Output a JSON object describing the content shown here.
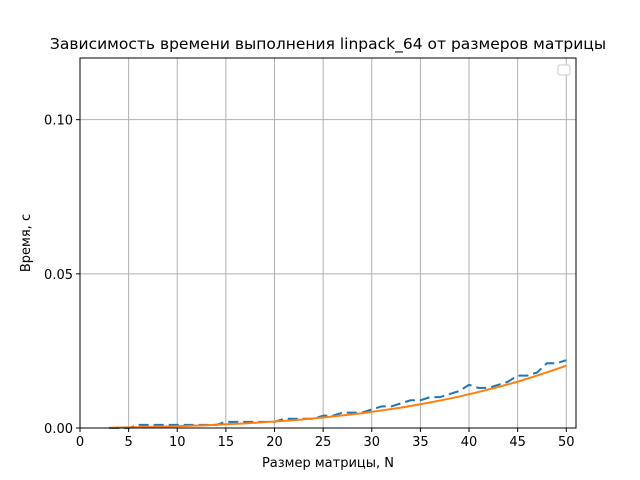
{
  "chart_data": {
    "type": "line",
    "title": "Зависимость времени выполнения linpack_64 от размеров матрицы",
    "xlabel": "Размер матрицы, N",
    "ylabel": "Время, с",
    "xlim": [
      0,
      51
    ],
    "ylim": [
      0,
      0.12
    ],
    "xticks": [
      0,
      5,
      10,
      15,
      20,
      25,
      30,
      35,
      40,
      45,
      50
    ],
    "xtick_labels": [
      "0",
      "5",
      "10",
      "15",
      "20",
      "25",
      "30",
      "35",
      "40",
      "45",
      "50"
    ],
    "yticks": [
      0,
      0.05,
      0.1
    ],
    "ytick_labels": [
      "0.00",
      "0.05",
      "0.10"
    ],
    "grid": true,
    "legend": "top-right",
    "colors": {
      "measured": "#1f77b4",
      "fit": "#ff7f0e",
      "grid": "#b0b0b0"
    },
    "series": [
      {
        "style": "dashed",
        "x": [
          3,
          4,
          5,
          6,
          7,
          8,
          9,
          10,
          11,
          12,
          13,
          14,
          15,
          16,
          17,
          18,
          19,
          20,
          21,
          22,
          23,
          24,
          25,
          26,
          27,
          28,
          29,
          30,
          31,
          32,
          33,
          34,
          35,
          36,
          37,
          38,
          39,
          40,
          41,
          42,
          43,
          44,
          45,
          46,
          47,
          48,
          49,
          50
        ],
        "y": [
          0,
          0,
          0,
          0.001,
          0.001,
          0.001,
          0.001,
          0.001,
          0.001,
          0.001,
          0.001,
          0.001,
          0.002,
          0.002,
          0.002,
          0.002,
          0.002,
          0.002,
          0.003,
          0.003,
          0.003,
          0.003,
          0.004,
          0.004,
          0.005,
          0.005,
          0.005,
          0.006,
          0.007,
          0.007,
          0.008,
          0.009,
          0.009,
          0.01,
          0.01,
          0.011,
          0.012,
          0.014,
          0.013,
          0.013,
          0.014,
          0.015,
          0.017,
          0.017,
          0.018,
          0.021,
          0.021,
          0.022
        ]
      },
      {
        "style": "solid",
        "x": [
          3,
          5,
          7,
          9,
          11,
          13,
          15,
          17,
          19,
          21,
          23,
          25,
          27,
          29,
          31,
          33,
          35,
          37,
          39,
          41,
          43,
          45,
          47,
          49,
          50
        ],
        "y": [
          8e-05,
          0.0002,
          0.00035,
          0.0005,
          0.0007,
          0.0009,
          0.0012,
          0.0015,
          0.0019,
          0.0023,
          0.0028,
          0.0034,
          0.0041,
          0.0048,
          0.0057,
          0.0066,
          0.0077,
          0.0089,
          0.0102,
          0.0117,
          0.0133,
          0.015,
          0.017,
          0.0191,
          0.0202
        ]
      }
    ]
  }
}
